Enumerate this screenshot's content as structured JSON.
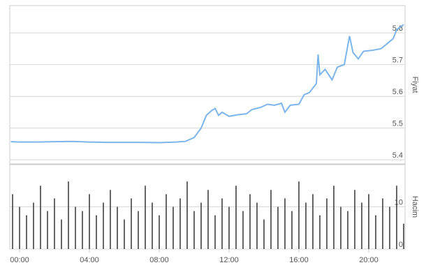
{
  "chart_data": [
    {
      "type": "line",
      "ylabel": "Fiyat",
      "color": "#7cb5ec",
      "x": [
        -0.5,
        0,
        1,
        2,
        3,
        4,
        5,
        6,
        7,
        8,
        9,
        9.5,
        10,
        10.4,
        10.7,
        11,
        11.2,
        11.4,
        11.6,
        12,
        12.5,
        13,
        13.3,
        13.8,
        14.2,
        14.6,
        15,
        15.2,
        15.5,
        16,
        16.3,
        16.6,
        17,
        17.1,
        17.2,
        17.5,
        17.9,
        18.2,
        18.6,
        18.9,
        19.1,
        19.4,
        19.7,
        20.2,
        20.7,
        21.1,
        21.4,
        21.6,
        22.0
      ],
      "values": [
        5.457,
        5.456,
        5.456,
        5.457,
        5.458,
        5.456,
        5.455,
        5.455,
        5.455,
        5.454,
        5.456,
        5.458,
        5.47,
        5.5,
        5.54,
        5.555,
        5.562,
        5.54,
        5.55,
        5.537,
        5.542,
        5.545,
        5.558,
        5.565,
        5.575,
        5.572,
        5.578,
        5.55,
        5.572,
        5.575,
        5.605,
        5.612,
        5.64,
        5.732,
        5.668,
        5.685,
        5.652,
        5.692,
        5.7,
        5.79,
        5.738,
        5.718,
        5.742,
        5.745,
        5.75,
        5.768,
        5.782,
        5.81,
        5.826
      ],
      "xlim": [
        -0.56,
        22.08
      ],
      "ylim": [
        5.387,
        5.886
      ],
      "yticks": [
        5.4,
        5.5,
        5.6,
        5.7,
        5.8
      ],
      "grid": true
    },
    {
      "type": "bar",
      "ylabel": "Hacim",
      "color": "#333333",
      "x": [
        -0.4,
        0,
        0.4,
        0.8,
        1.2,
        1.6,
        2,
        2.4,
        2.8,
        3.2,
        3.6,
        4,
        4.4,
        4.8,
        5.2,
        5.6,
        6,
        6.4,
        6.8,
        7.2,
        7.6,
        8,
        8.4,
        8.8,
        9.2,
        9.6,
        10,
        10.4,
        10.8,
        11.2,
        11.6,
        12,
        12.4,
        12.8,
        13.2,
        13.6,
        14,
        14.4,
        14.8,
        15.2,
        15.6,
        16,
        16.4,
        16.8,
        17.2,
        17.6,
        18,
        18.4,
        18.8,
        19.2,
        19.6,
        20,
        20.4,
        20.8,
        21.2,
        21.6,
        22
      ],
      "values": [
        13,
        10,
        8,
        11,
        15,
        9,
        12,
        7,
        16,
        10,
        9,
        13,
        8,
        11,
        14,
        10,
        7,
        12,
        9,
        15,
        11,
        8,
        13,
        10,
        12,
        16,
        9,
        11,
        14,
        8,
        12,
        10,
        15,
        9,
        13,
        11,
        7,
        14,
        10,
        12,
        9,
        16,
        11,
        13,
        8,
        12,
        15,
        10,
        9,
        14,
        11,
        13,
        8,
        12,
        10,
        15,
        6
      ],
      "xlim": [
        -0.56,
        22.08
      ],
      "ylim": [
        0,
        20
      ],
      "yticks": [
        0,
        10
      ],
      "grid": true,
      "xticks": [
        {
          "value": 0,
          "label": "00:00"
        },
        {
          "value": 4,
          "label": "04:00"
        },
        {
          "value": 8,
          "label": "08:00"
        },
        {
          "value": 12,
          "label": "12:00"
        },
        {
          "value": 16,
          "label": "16:00"
        },
        {
          "value": 20,
          "label": "20:00"
        }
      ]
    }
  ]
}
